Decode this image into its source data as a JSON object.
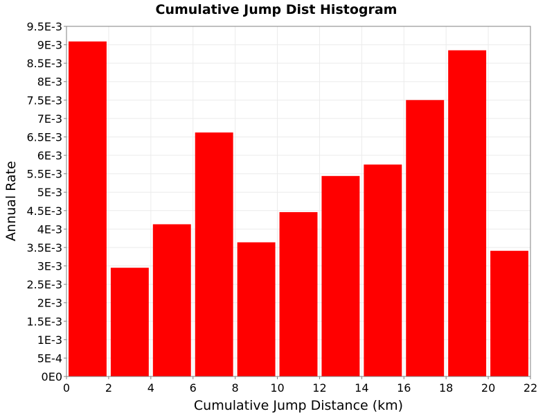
{
  "chart_data": {
    "type": "bar",
    "title": "Cumulative Jump Dist Histogram",
    "xlabel": "Cumulative Jump Distance (km)",
    "ylabel": "Annual Rate",
    "xlim": [
      0,
      22
    ],
    "ylim": [
      0,
      0.0095
    ],
    "grid": true,
    "legend": "none",
    "bar_color": "#ff0000",
    "grid_color": "#ebebeb",
    "x_ticks": [
      "0",
      "2",
      "4",
      "6",
      "8",
      "10",
      "12",
      "14",
      "16",
      "18",
      "20",
      "22"
    ],
    "y_ticks": [
      "0E0",
      "5E-4",
      "1E-3",
      "1.5E-3",
      "2E-3",
      "2.5E-3",
      "3E-3",
      "3.5E-3",
      "4E-3",
      "4.5E-3",
      "5E-3",
      "5.5E-3",
      "6E-3",
      "6.5E-3",
      "7E-3",
      "7.5E-3",
      "8E-3",
      "8.5E-3",
      "9E-3",
      "9.5E-3"
    ],
    "bins": [
      {
        "x_start": 0,
        "x_end": 2,
        "value": 0.00909
      },
      {
        "x_start": 2,
        "x_end": 4,
        "value": 0.00295
      },
      {
        "x_start": 4,
        "x_end": 6,
        "value": 0.00413
      },
      {
        "x_start": 6,
        "x_end": 8,
        "value": 0.00662
      },
      {
        "x_start": 8,
        "x_end": 10,
        "value": 0.00364
      },
      {
        "x_start": 10,
        "x_end": 12,
        "value": 0.00446
      },
      {
        "x_start": 12,
        "x_end": 14,
        "value": 0.00544
      },
      {
        "x_start": 14,
        "x_end": 16,
        "value": 0.00575
      },
      {
        "x_start": 16,
        "x_end": 18,
        "value": 0.0075
      },
      {
        "x_start": 18,
        "x_end": 20,
        "value": 0.00885
      },
      {
        "x_start": 20,
        "x_end": 22,
        "value": 0.00341
      }
    ]
  }
}
